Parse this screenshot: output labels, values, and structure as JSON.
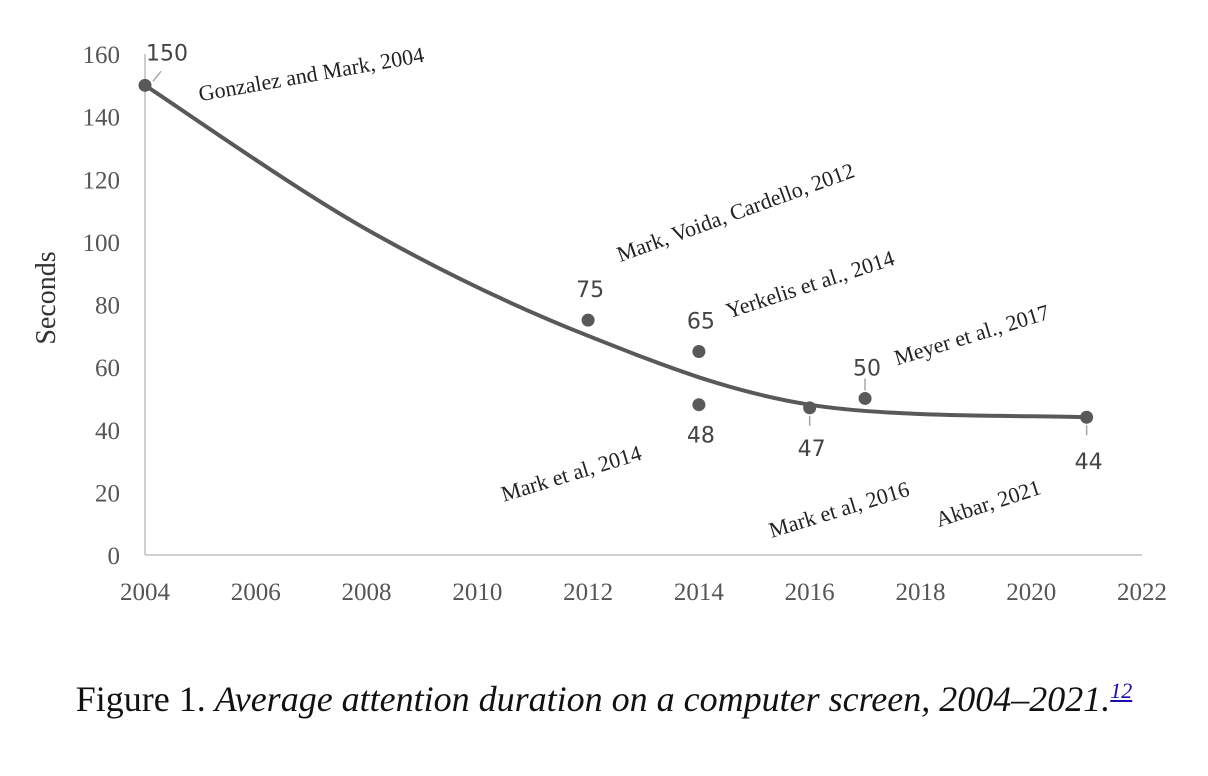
{
  "chart_data": {
    "type": "scatter",
    "ylabel": "Seconds",
    "xlabel": "",
    "xlim": [
      2004,
      2022
    ],
    "ylim": [
      0,
      160
    ],
    "x_ticks": [
      "2004",
      "2006",
      "2008",
      "2010",
      "2012",
      "2014",
      "2016",
      "2018",
      "2020",
      "2022"
    ],
    "y_ticks": [
      "0",
      "20",
      "40",
      "60",
      "80",
      "100",
      "120",
      "140",
      "160"
    ],
    "grid": false,
    "points": [
      {
        "x": 2004,
        "y": 150,
        "value_label": "150",
        "annotation": "Gonzalez and Mark, 2004"
      },
      {
        "x": 2012,
        "y": 75,
        "value_label": "75",
        "annotation": "Mark, Voida, Cardello, 2012"
      },
      {
        "x": 2014,
        "y": 65,
        "value_label": "65",
        "annotation": "Yerkelis et al., 2014"
      },
      {
        "x": 2014,
        "y": 48,
        "value_label": "48",
        "annotation": "Mark et al, 2014"
      },
      {
        "x": 2016,
        "y": 47,
        "value_label": "47",
        "annotation": "Mark et al, 2016"
      },
      {
        "x": 2017,
        "y": 50,
        "value_label": "50",
        "annotation": "Meyer et al., 2017"
      },
      {
        "x": 2021,
        "y": 44,
        "value_label": "44",
        "annotation": "Akbar, 2021"
      }
    ],
    "trendline": {
      "type": "polynomial",
      "x": [
        2004,
        2008,
        2012,
        2016,
        2021
      ],
      "y": [
        150,
        104,
        70,
        48,
        44
      ]
    }
  },
  "caption": {
    "lead": "Figure 1. ",
    "title": "Average attention duration on a computer screen, 2004–2021.",
    "ref": "12"
  }
}
